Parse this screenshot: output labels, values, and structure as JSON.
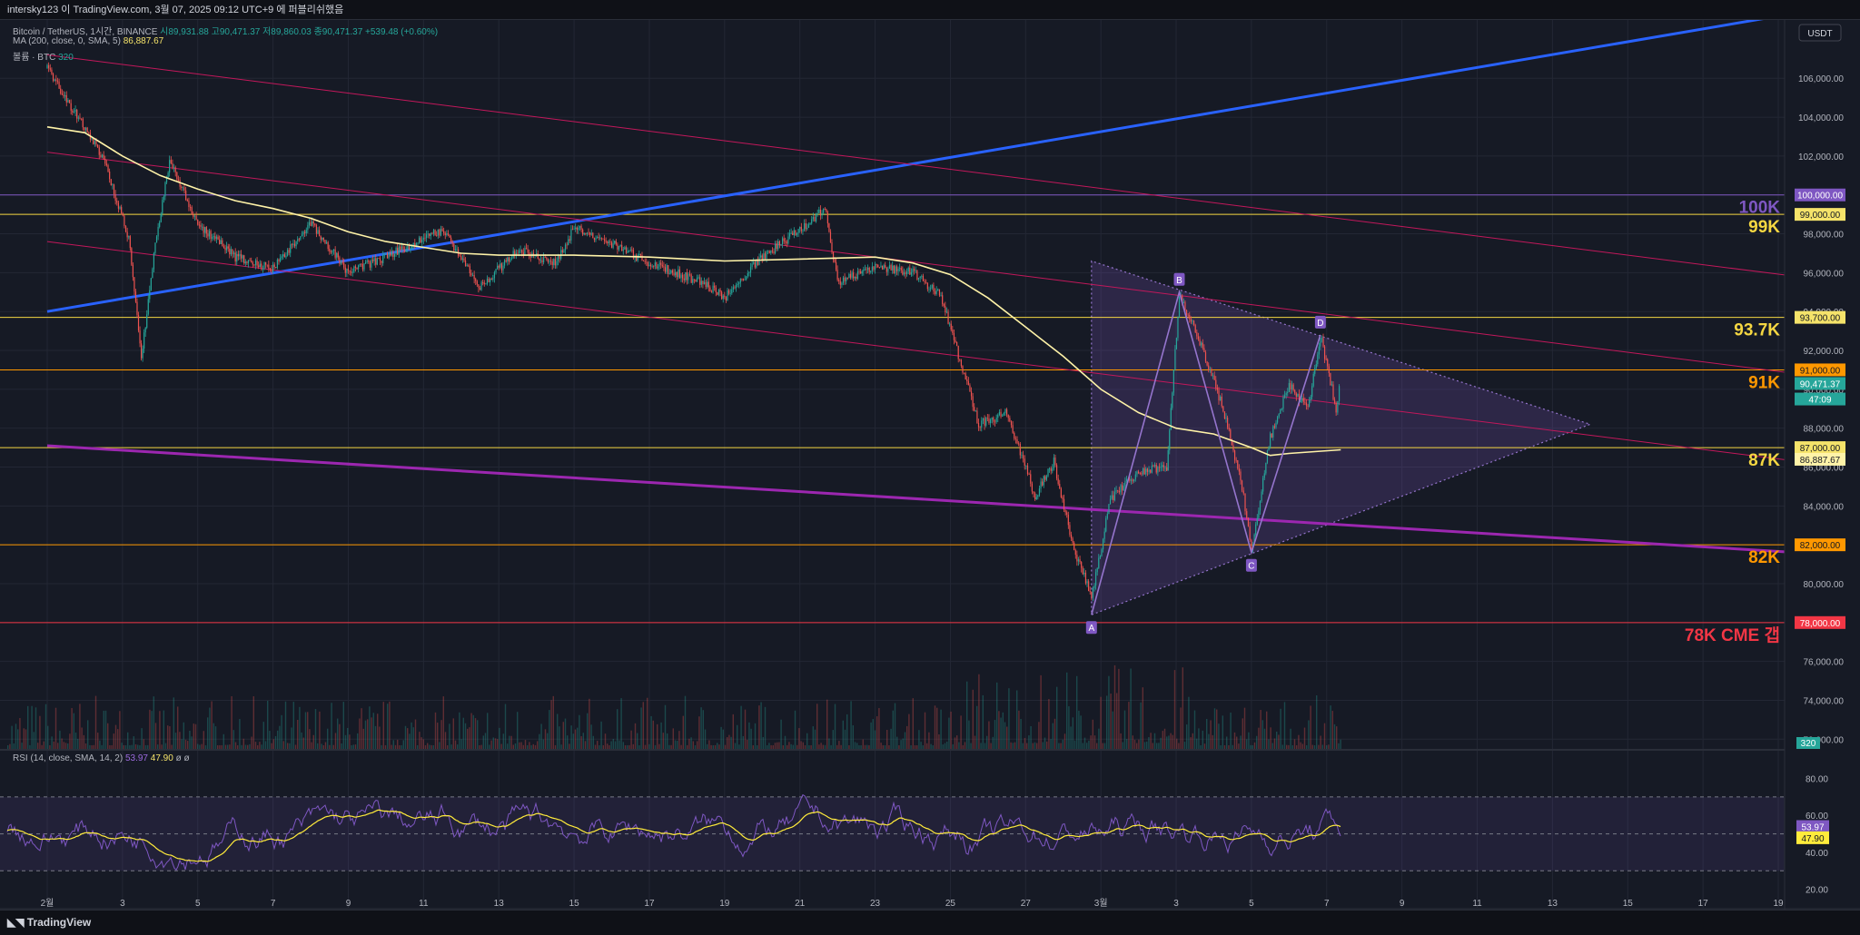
{
  "header": {
    "title": "intersky123 이 TradingView.com, 3월 07, 2025 09:12 UTC+9 에 퍼블리쉬했음"
  },
  "legend": {
    "symbol": "Bitcoin / TetherUS, 1시간, BINANCE",
    "ohlc": "시89,931.88  고90,471.37  저89,860.03  종90,471.37  +539.48 (+0.60%)",
    "ma_label": "MA (200, close, 0, SMA, 5)",
    "ma_value": "86,887.67",
    "vol_label": "볼륨 · BTC",
    "vol_value": "320",
    "rsi_label": "RSI (14, close, SMA, 14, 2)",
    "rsi_value": "53.97",
    "rsi_ma_value": "47.90",
    "rsi_extra": "ø  ø"
  },
  "footer": {
    "brand": "TradingView"
  },
  "colors": {
    "bg": "#161a25",
    "grid": "#232734",
    "axis_text": "#b2b5be",
    "up": "#26a69a",
    "down": "#ef5350",
    "ma": "#fff3a8",
    "blue_line": "#2962ff",
    "purple_line": "#9c27b0",
    "channel": "#c2185b",
    "pattern": "#7e57c2",
    "rsi": "#7e57c2",
    "rsi_ma": "#ffeb3b"
  },
  "chart_data": {
    "type": "line",
    "title": "Bitcoin / TetherUS, 1시간, BINANCE",
    "currency": "USDT",
    "ylim": [
      71500,
      109000
    ],
    "y_ticks": [
      72000,
      74000,
      76000,
      78000,
      80000,
      82000,
      84000,
      86000,
      88000,
      90000,
      92000,
      94000,
      96000,
      98000,
      100000,
      102000,
      104000,
      106000
    ],
    "x_ticks": [
      "2월",
      "3",
      "5",
      "7",
      "9",
      "11",
      "13",
      "15",
      "17",
      "19",
      "21",
      "23",
      "25",
      "27",
      "3월",
      "3",
      "5",
      "7",
      "9",
      "11",
      "13",
      "15",
      "17",
      "19"
    ],
    "x_range": [
      "2025-02-01",
      "2025-03-19"
    ],
    "price_path": [
      [
        "2025-02-01T00:00",
        106500
      ],
      [
        "2025-02-01T18:00",
        104200
      ],
      [
        "2025-02-02T12:00",
        101800
      ],
      [
        "2025-02-03T04:00",
        97800
      ],
      [
        "2025-02-03T12:00",
        91500
      ],
      [
        "2025-02-03T20:00",
        97000
      ],
      [
        "2025-02-04T06:00",
        101800
      ],
      [
        "2025-02-05T00:00",
        98500
      ],
      [
        "2025-02-06T00:00",
        96800
      ],
      [
        "2025-02-07T00:00",
        96200
      ],
      [
        "2025-02-08T00:00",
        98600
      ],
      [
        "2025-02-09T00:00",
        96000
      ],
      [
        "2025-02-10T00:00",
        96800
      ],
      [
        "2025-02-11T12:00",
        98200
      ],
      [
        "2025-02-12T12:00",
        95200
      ],
      [
        "2025-02-13T12:00",
        97200
      ],
      [
        "2025-02-14T12:00",
        96500
      ],
      [
        "2025-02-15T00:00",
        98300
      ],
      [
        "2025-02-16T00:00",
        97500
      ],
      [
        "2025-02-17T00:00",
        96500
      ],
      [
        "2025-02-18T12:00",
        95400
      ],
      [
        "2025-02-19T00:00",
        94700
      ],
      [
        "2025-02-20T00:00",
        96800
      ],
      [
        "2025-02-21T00:00",
        98200
      ],
      [
        "2025-02-21T16:00",
        99300
      ],
      [
        "2025-02-22T00:00",
        95500
      ],
      [
        "2025-02-23T00:00",
        96300
      ],
      [
        "2025-02-24T00:00",
        96000
      ],
      [
        "2025-02-24T18:00",
        94800
      ],
      [
        "2025-02-25T06:00",
        91500
      ],
      [
        "2025-02-25T18:00",
        88200
      ],
      [
        "2025-02-26T12:00",
        88800
      ],
      [
        "2025-02-27T06:00",
        84500
      ],
      [
        "2025-02-27T18:00",
        86300
      ],
      [
        "2025-02-28T06:00",
        82000
      ],
      [
        "2025-02-28T18:00",
        79300
      ],
      [
        "2025-03-01T06:00",
        84300
      ],
      [
        "2025-03-02T00:00",
        85800
      ],
      [
        "2025-03-02T18:00",
        86000
      ],
      [
        "2025-03-03T02:00",
        94800
      ],
      [
        "2025-03-03T16:00",
        92300
      ],
      [
        "2025-03-04T06:00",
        89000
      ],
      [
        "2025-03-04T18:00",
        85000
      ],
      [
        "2025-03-05T00:00",
        81800
      ],
      [
        "2025-03-05T12:00",
        87500
      ],
      [
        "2025-03-06T00:00",
        90200
      ],
      [
        "2025-03-06T12:00",
        89000
      ],
      [
        "2025-03-06T20:00",
        92800
      ],
      [
        "2025-03-07T06:00",
        89000
      ],
      [
        "2025-03-07T09:00",
        90471
      ]
    ],
    "ma_200": [
      [
        "2025-02-01T00:00",
        103500
      ],
      [
        "2025-02-02T00:00",
        103200
      ],
      [
        "2025-02-03T00:00",
        102000
      ],
      [
        "2025-02-04T00:00",
        101000
      ],
      [
        "2025-02-05T00:00",
        100300
      ],
      [
        "2025-02-06T00:00",
        99700
      ],
      [
        "2025-02-07T00:00",
        99300
      ],
      [
        "2025-02-08T00:00",
        98800
      ],
      [
        "2025-02-09T00:00",
        98100
      ],
      [
        "2025-02-10T00:00",
        97600
      ],
      [
        "2025-02-11T00:00",
        97300
      ],
      [
        "2025-02-12T00:00",
        97000
      ],
      [
        "2025-02-13T00:00",
        96900
      ],
      [
        "2025-02-15T00:00",
        96900
      ],
      [
        "2025-02-17T00:00",
        96800
      ],
      [
        "2025-02-19T00:00",
        96600
      ],
      [
        "2025-02-21T00:00",
        96700
      ],
      [
        "2025-02-23T00:00",
        96800
      ],
      [
        "2025-02-24T00:00",
        96500
      ],
      [
        "2025-02-25T00:00",
        95900
      ],
      [
        "2025-02-26T00:00",
        94700
      ],
      [
        "2025-02-27T00:00",
        93200
      ],
      [
        "2025-02-28T00:00",
        91700
      ],
      [
        "2025-03-01T00:00",
        90000
      ],
      [
        "2025-03-02T00:00",
        88800
      ],
      [
        "2025-03-03T00:00",
        88000
      ],
      [
        "2025-03-04T00:00",
        87700
      ],
      [
        "2025-03-05T00:00",
        87000
      ],
      [
        "2025-03-05T12:00",
        86600
      ],
      [
        "2025-03-06T00:00",
        86700
      ],
      [
        "2025-03-07T09:00",
        86888
      ]
    ],
    "hlines": [
      {
        "price": 100000,
        "label": "100K",
        "color": "#7e57c2"
      },
      {
        "price": 99000,
        "label": "99K",
        "color": "#f5d742"
      },
      {
        "price": 93700,
        "label": "93.7K",
        "color": "#f5d742"
      },
      {
        "price": 91000,
        "label": "91K",
        "color": "#ff9800"
      },
      {
        "price": 87000,
        "label": "87K",
        "color": "#f5d742"
      },
      {
        "price": 82000,
        "label": "82K",
        "color": "#ff9800"
      },
      {
        "price": 78000,
        "label": "78K CME 갭",
        "color": "#f23645"
      }
    ],
    "trend_lines": [
      {
        "name": "blue",
        "from": [
          "2025-02-01T00:00",
          94000
        ],
        "to": [
          "2025-03-19T00:00",
          109200
        ]
      },
      {
        "name": "purple",
        "from": [
          "2025-02-01T00:00",
          87100
        ],
        "to": [
          "2025-03-19T12:00",
          81600
        ]
      },
      {
        "name": "channel-upper",
        "from": [
          "2025-02-01T00:00",
          107200
        ],
        "to": [
          "2025-03-19T12:00",
          95800
        ]
      },
      {
        "name": "channel-mid",
        "from": [
          "2025-02-01T00:00",
          102200
        ],
        "to": [
          "2025-03-19T12:00",
          90800
        ]
      },
      {
        "name": "channel-lower",
        "from": [
          "2025-02-01T00:00",
          97600
        ],
        "to": [
          "2025-03-19T12:00",
          86300
        ]
      }
    ],
    "pattern_points": [
      {
        "label": "A",
        "t": "2025-02-28T18:00",
        "price": 78400
      },
      {
        "label": "B",
        "t": "2025-03-03T02:00",
        "price": 95000
      },
      {
        "label": "C",
        "t": "2025-03-05T00:00",
        "price": 81600
      },
      {
        "label": "D",
        "t": "2025-03-06T20:00",
        "price": 92800
      }
    ],
    "triangle": [
      [
        "2025-02-28T18:00",
        96600
      ],
      [
        "2025-02-28T18:00",
        78400
      ],
      [
        "2025-03-14T00:00",
        88200
      ]
    ],
    "volume_last": 320,
    "price_labels": [
      {
        "text": "100,000.00",
        "price": 100000,
        "bg": "#7e57c2",
        "fg": "#ffffff"
      },
      {
        "text": "99,000.00",
        "price": 99000,
        "bg": "#f5e36a",
        "fg": "#131722"
      },
      {
        "text": "93,700.00",
        "price": 93700,
        "bg": "#f5e36a",
        "fg": "#131722"
      },
      {
        "text": "91,000.00",
        "price": 91000,
        "bg": "#ff9800",
        "fg": "#131722"
      },
      {
        "text": "90,471.37",
        "price": 90300,
        "bg": "#26a69a",
        "fg": "#ffffff"
      },
      {
        "text": "47:09",
        "price": 89500,
        "bg": "#26a69a",
        "fg": "#ffffff"
      },
      {
        "text": "87,000.00",
        "price": 87000,
        "bg": "#f5e36a",
        "fg": "#131722"
      },
      {
        "text": "86,887.67",
        "price": 86400,
        "bg": "#fff3a8",
        "fg": "#131722"
      },
      {
        "text": "82,000.00",
        "price": 82000,
        "bg": "#ff9800",
        "fg": "#131722"
      },
      {
        "text": "78,000.00",
        "price": 78000,
        "bg": "#f23645",
        "fg": "#ffffff"
      }
    ],
    "rsi": {
      "ylim": [
        10,
        95
      ],
      "levels": [
        70,
        50,
        30
      ],
      "ticks": [
        20,
        40,
        60,
        80
      ],
      "value": 53.97,
      "ma_value": 47.9
    }
  }
}
